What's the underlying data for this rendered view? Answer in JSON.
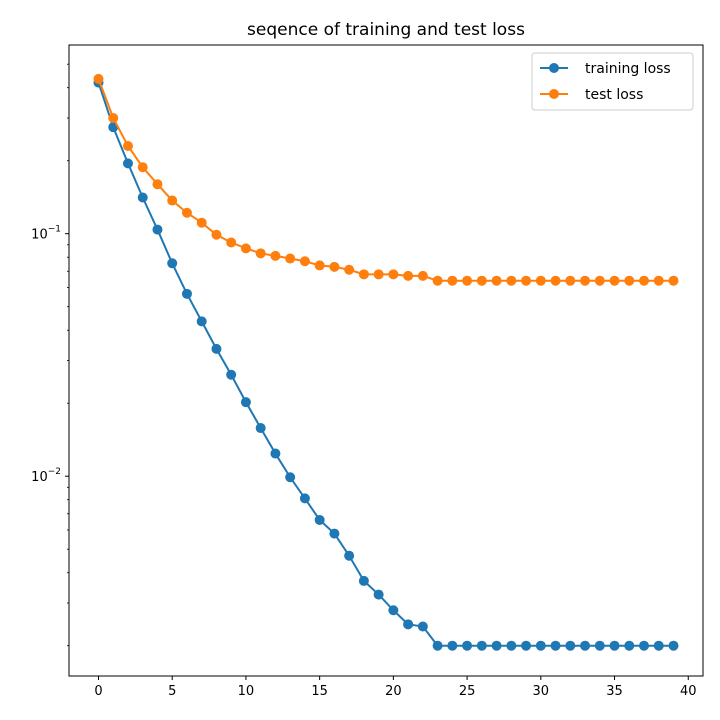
{
  "chart_data": {
    "type": "line",
    "title": "seqence of training and test loss",
    "xlabel": "",
    "ylabel": "",
    "yscale": "log",
    "xlim": [
      -2,
      41
    ],
    "ylim": [
      0.0015,
      0.6
    ],
    "xticks": [
      0,
      5,
      10,
      15,
      20,
      25,
      30,
      35,
      40
    ],
    "yticks": [
      {
        "value": 0.1,
        "base": "10",
        "exp": "−1"
      },
      {
        "value": 0.01,
        "base": "10",
        "exp": "−2"
      }
    ],
    "grid": false,
    "legend_position": "top-right",
    "x": [
      0,
      1,
      2,
      3,
      4,
      5,
      6,
      7,
      8,
      9,
      10,
      11,
      12,
      13,
      14,
      15,
      16,
      17,
      18,
      19,
      20,
      21,
      22,
      23,
      24,
      25,
      26,
      27,
      28,
      29,
      30,
      31,
      32,
      33,
      34,
      35,
      36,
      37,
      38,
      39
    ],
    "series": [
      {
        "name": "training loss",
        "color": "#1f77b4",
        "values": [
          0.42,
          0.275,
          0.195,
          0.141,
          0.104,
          0.0755,
          0.0565,
          0.0435,
          0.0335,
          0.0262,
          0.0202,
          0.0158,
          0.0124,
          0.0099,
          0.0081,
          0.0066,
          0.0058,
          0.0047,
          0.0037,
          0.00325,
          0.0028,
          0.00245,
          0.0024,
          0.002,
          0.002,
          0.002,
          0.002,
          0.002,
          0.002,
          0.002,
          0.002,
          0.002,
          0.002,
          0.002,
          0.002,
          0.002,
          0.002,
          0.002,
          0.002,
          0.002
        ]
      },
      {
        "name": "test loss",
        "color": "#ff7f0e",
        "values": [
          0.435,
          0.3,
          0.23,
          0.188,
          0.16,
          0.137,
          0.122,
          0.111,
          0.099,
          0.092,
          0.087,
          0.083,
          0.081,
          0.079,
          0.077,
          0.074,
          0.073,
          0.071,
          0.068,
          0.068,
          0.068,
          0.067,
          0.067,
          0.064,
          0.064,
          0.064,
          0.064,
          0.064,
          0.064,
          0.064,
          0.064,
          0.064,
          0.064,
          0.064,
          0.064,
          0.064,
          0.064,
          0.064,
          0.064,
          0.064
        ]
      }
    ]
  }
}
